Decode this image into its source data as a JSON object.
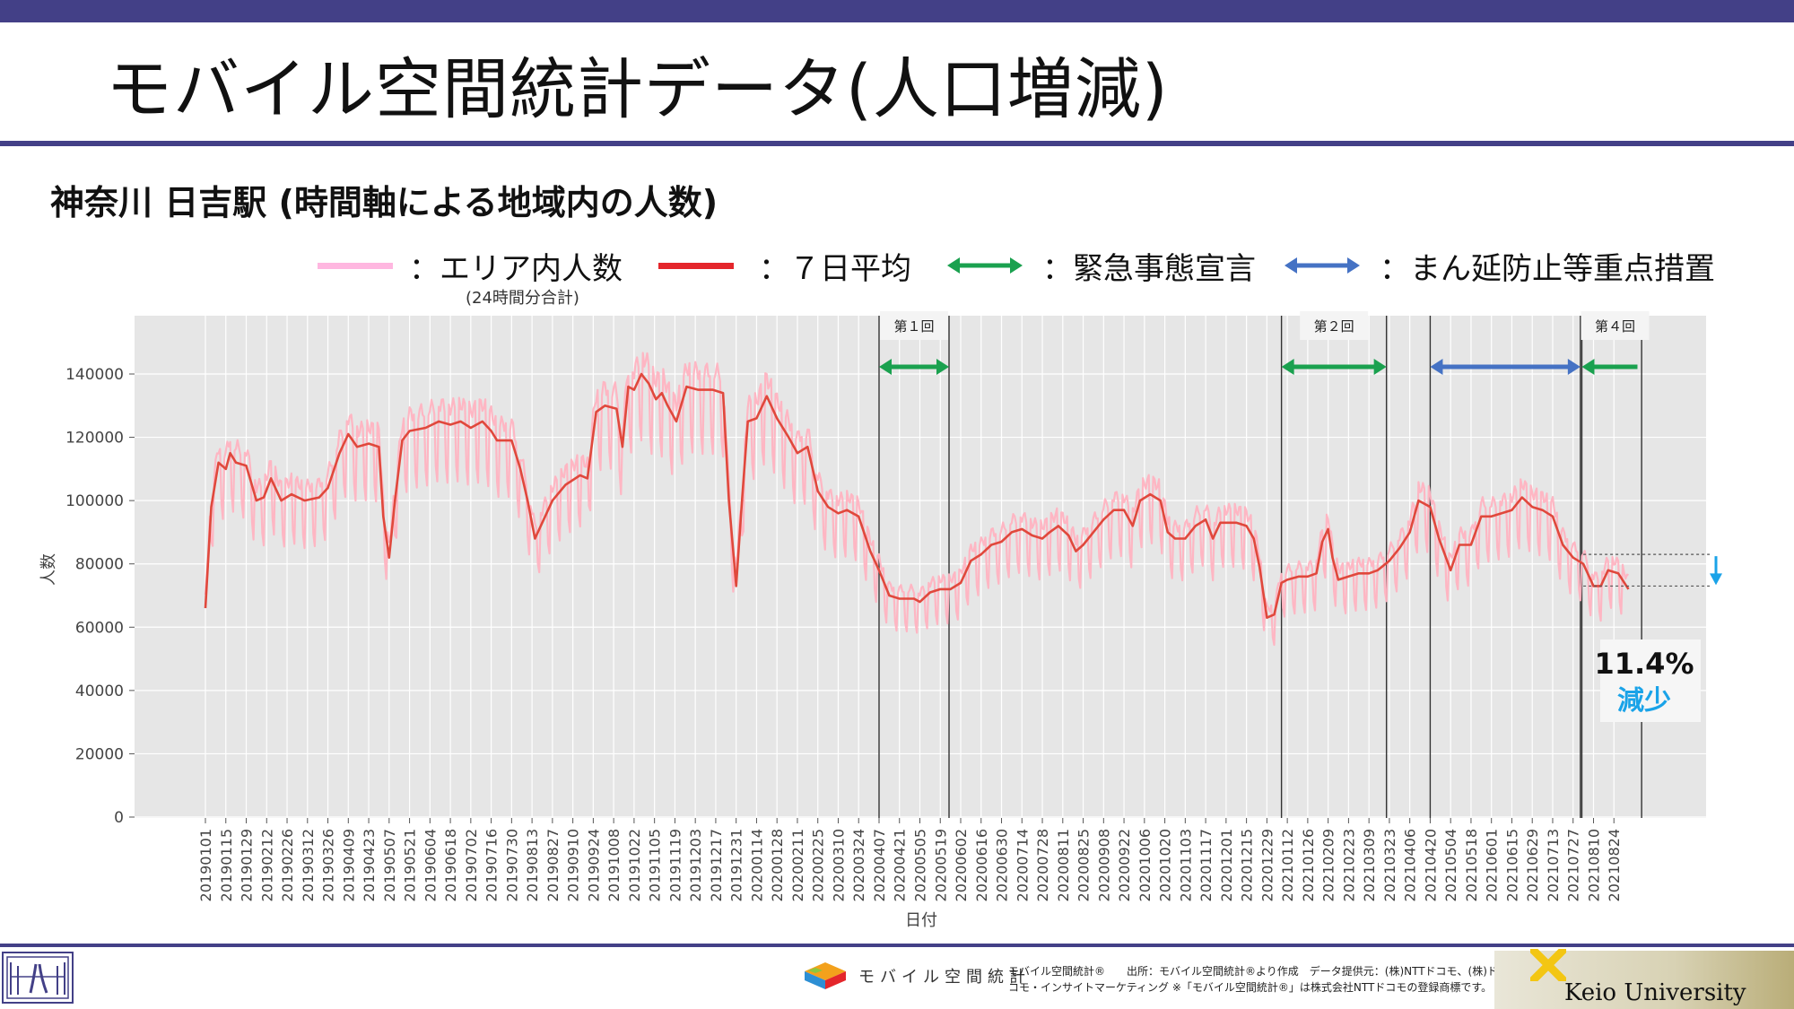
{
  "page": {
    "title": "モバイル空間統計データ(人口増減)",
    "subtitle": "神奈川 日吉駅 (時間軸による地域内の人数)"
  },
  "legend": {
    "items": [
      {
        "label": "：エリア内人数",
        "color": "#ffb7e0",
        "kind": "line"
      },
      {
        "label": "：７日平均",
        "color": "#e4262b",
        "kind": "line"
      },
      {
        "label": "：緊急事態宣言",
        "color": "#1aa14f",
        "kind": "arrow"
      },
      {
        "label": "：まん延防止等重点措置",
        "color": "#4572c4",
        "kind": "arrow"
      }
    ],
    "note": "(24時間分合計)"
  },
  "colors": {
    "brand": "#434087",
    "daily": "#ffb3c1",
    "avg": "#e0483c",
    "emergency": "#1aa14f",
    "priority": "#4572c4",
    "decrease": "#1aa3e8",
    "plot_bg": "#e6e6e6"
  },
  "chart_data": {
    "type": "line",
    "xlabel": "日付",
    "ylabel": "人数",
    "ylim": [
      0,
      150000
    ],
    "yticks": [
      0,
      20000,
      40000,
      60000,
      80000,
      100000,
      120000,
      140000
    ],
    "grid": true,
    "x_start": "20190101",
    "x_end": "20210907",
    "x_ticks": [
      "20190101",
      "20190115",
      "20190129",
      "20190212",
      "20190226",
      "20190312",
      "20190326",
      "20190409",
      "20190423",
      "20190507",
      "20190521",
      "20190604",
      "20190618",
      "20190702",
      "20190716",
      "20190730",
      "20190813",
      "20190827",
      "20190910",
      "20190924",
      "20191008",
      "20191022",
      "20191105",
      "20191119",
      "20191203",
      "20191217",
      "20191231",
      "20200114",
      "20200128",
      "20200211",
      "20200225",
      "20200310",
      "20200324",
      "20200407",
      "20200421",
      "20200505",
      "20200519",
      "20200602",
      "20200616",
      "20200630",
      "20200714",
      "20200728",
      "20200811",
      "20200825",
      "20200908",
      "20200922",
      "20201006",
      "20201020",
      "20201103",
      "20201117",
      "20201201",
      "20201215",
      "20201229",
      "20210112",
      "20210126",
      "20210209",
      "20210223",
      "20210309",
      "20210323",
      "20210406",
      "20210420",
      "20210504",
      "20210518",
      "20210601",
      "20210615",
      "20210629",
      "20210713",
      "20210727",
      "20210810",
      "20210824"
    ],
    "series": [
      {
        "name": "７日平均",
        "role": "avg",
        "points": [
          [
            "20190101",
            66000
          ],
          [
            "20190105",
            98000
          ],
          [
            "20190110",
            112000
          ],
          [
            "20190115",
            110000
          ],
          [
            "20190118",
            115000
          ],
          [
            "20190122",
            112000
          ],
          [
            "20190129",
            111000
          ],
          [
            "20190205",
            100000
          ],
          [
            "20190210",
            101000
          ],
          [
            "20190215",
            107000
          ],
          [
            "20190222",
            100000
          ],
          [
            "20190301",
            102000
          ],
          [
            "20190310",
            100000
          ],
          [
            "20190320",
            101000
          ],
          [
            "20190326",
            104000
          ],
          [
            "20190403",
            115000
          ],
          [
            "20190409",
            121000
          ],
          [
            "20190415",
            117000
          ],
          [
            "20190423",
            118000
          ],
          [
            "20190430",
            117000
          ],
          [
            "20190503",
            95000
          ],
          [
            "20190507",
            82000
          ],
          [
            "20190511",
            100000
          ],
          [
            "20190516",
            119000
          ],
          [
            "20190521",
            122000
          ],
          [
            "20190601",
            123000
          ],
          [
            "20190610",
            125000
          ],
          [
            "20190618",
            124000
          ],
          [
            "20190625",
            125000
          ],
          [
            "20190702",
            123000
          ],
          [
            "20190710",
            125000
          ],
          [
            "20190716",
            122000
          ],
          [
            "20190720",
            119000
          ],
          [
            "20190730",
            119000
          ],
          [
            "20190805",
            110000
          ],
          [
            "20190810",
            100000
          ],
          [
            "20190815",
            88000
          ],
          [
            "20190820",
            93000
          ],
          [
            "20190827",
            100000
          ],
          [
            "20190905",
            105000
          ],
          [
            "20190915",
            108000
          ],
          [
            "20190920",
            107000
          ],
          [
            "20190926",
            128000
          ],
          [
            "20191002",
            130000
          ],
          [
            "20191010",
            129000
          ],
          [
            "20191014",
            117000
          ],
          [
            "20191018",
            136000
          ],
          [
            "20191022",
            135000
          ],
          [
            "20191027",
            140000
          ],
          [
            "20191101",
            137000
          ],
          [
            "20191106",
            132000
          ],
          [
            "20191110",
            134000
          ],
          [
            "20191114",
            130000
          ],
          [
            "20191120",
            125000
          ],
          [
            "20191127",
            136000
          ],
          [
            "20191205",
            135000
          ],
          [
            "20191215",
            135000
          ],
          [
            "20191222",
            134000
          ],
          [
            "20191226",
            100000
          ],
          [
            "20191231",
            73000
          ],
          [
            "20200104",
            100000
          ],
          [
            "20200108",
            125000
          ],
          [
            "20200114",
            126000
          ],
          [
            "20200121",
            133000
          ],
          [
            "20200128",
            126000
          ],
          [
            "20200205",
            120000
          ],
          [
            "20200211",
            115000
          ],
          [
            "20200218",
            117000
          ],
          [
            "20200225",
            103000
          ],
          [
            "20200303",
            98000
          ],
          [
            "20200310",
            96000
          ],
          [
            "20200316",
            97000
          ],
          [
            "20200324",
            95000
          ],
          [
            "20200401",
            84000
          ],
          [
            "20200407",
            78000
          ],
          [
            "20200414",
            70000
          ],
          [
            "20200421",
            69000
          ],
          [
            "20200501",
            69000
          ],
          [
            "20200505",
            68000
          ],
          [
            "20200512",
            71000
          ],
          [
            "20200519",
            72000
          ],
          [
            "20200526",
            72000
          ],
          [
            "20200602",
            74000
          ],
          [
            "20200609",
            81000
          ],
          [
            "20200616",
            83000
          ],
          [
            "20200623",
            86000
          ],
          [
            "20200630",
            87000
          ],
          [
            "20200707",
            90000
          ],
          [
            "20200714",
            91000
          ],
          [
            "20200721",
            89000
          ],
          [
            "20200728",
            88000
          ],
          [
            "20200802",
            90000
          ],
          [
            "20200808",
            92000
          ],
          [
            "20200815",
            89000
          ],
          [
            "20200820",
            84000
          ],
          [
            "20200825",
            86000
          ],
          [
            "20200901",
            90000
          ],
          [
            "20200908",
            94000
          ],
          [
            "20200915",
            97000
          ],
          [
            "20200922",
            97000
          ],
          [
            "20200928",
            92000
          ],
          [
            "20201003",
            100000
          ],
          [
            "20201010",
            102000
          ],
          [
            "20201017",
            100000
          ],
          [
            "20201022",
            90000
          ],
          [
            "20201027",
            88000
          ],
          [
            "20201103",
            88000
          ],
          [
            "20201110",
            92000
          ],
          [
            "20201117",
            94000
          ],
          [
            "20201122",
            88000
          ],
          [
            "20201127",
            93000
          ],
          [
            "20201201",
            93000
          ],
          [
            "20201208",
            93000
          ],
          [
            "20201215",
            92000
          ],
          [
            "20201220",
            88000
          ],
          [
            "20201224",
            79000
          ],
          [
            "20201229",
            63000
          ],
          [
            "20210103",
            64000
          ],
          [
            "20210108",
            74000
          ],
          [
            "20210112",
            75000
          ],
          [
            "20210120",
            76000
          ],
          [
            "20210126",
            76000
          ],
          [
            "20210201",
            77000
          ],
          [
            "20210205",
            87000
          ],
          [
            "20210209",
            91000
          ],
          [
            "20210212",
            82000
          ],
          [
            "20210216",
            75000
          ],
          [
            "20210223",
            76000
          ],
          [
            "20210302",
            77000
          ],
          [
            "20210309",
            77000
          ],
          [
            "20210315",
            78000
          ],
          [
            "20210323",
            81000
          ],
          [
            "20210330",
            85000
          ],
          [
            "20210406",
            90000
          ],
          [
            "20210412",
            100000
          ],
          [
            "20210420",
            98000
          ],
          [
            "20210426",
            88000
          ],
          [
            "20210504",
            78000
          ],
          [
            "20210510",
            86000
          ],
          [
            "20210518",
            86000
          ],
          [
            "20210525",
            95000
          ],
          [
            "20210601",
            95000
          ],
          [
            "20210608",
            96000
          ],
          [
            "20210615",
            97000
          ],
          [
            "20210622",
            101000
          ],
          [
            "20210629",
            98000
          ],
          [
            "20210706",
            97000
          ],
          [
            "20210713",
            95000
          ],
          [
            "20210720",
            86000
          ],
          [
            "20210727",
            82000
          ],
          [
            "20210803",
            80000
          ],
          [
            "20210810",
            73000
          ],
          [
            "20210815",
            73000
          ],
          [
            "20210820",
            78000
          ],
          [
            "20210827",
            77000
          ],
          [
            "20210903",
            72000
          ]
        ]
      }
    ],
    "periods": [
      {
        "type": "emergency",
        "start": "20200407",
        "end": "20200525",
        "label": "第１回"
      },
      {
        "type": "emergency",
        "start": "20210108",
        "end": "20210321",
        "label": "第２回"
      },
      {
        "type": "priority",
        "start": "20210420",
        "end": "20210801",
        "label": ""
      },
      {
        "type": "emergency",
        "start": "20210802",
        "end": "20210912",
        "label": "第４回"
      }
    ],
    "reference_levels": [
      83000,
      73000
    ],
    "annotation": {
      "percent": "11.4%",
      "text": "減少",
      "arrow": "down"
    }
  },
  "footer": {
    "mobile_brand": "モバイル空間統計",
    "credit_line1": "モバイル空間統計®　　出所：モバイル空間統計®より作成　データ提供元：(株)NTTドコモ、(株)ド",
    "credit_line2": "コモ・インサイトマーケティング ※「モバイル空間統計®」は株式会社NTTドコモの登録商標です。",
    "university": "Keio University"
  }
}
